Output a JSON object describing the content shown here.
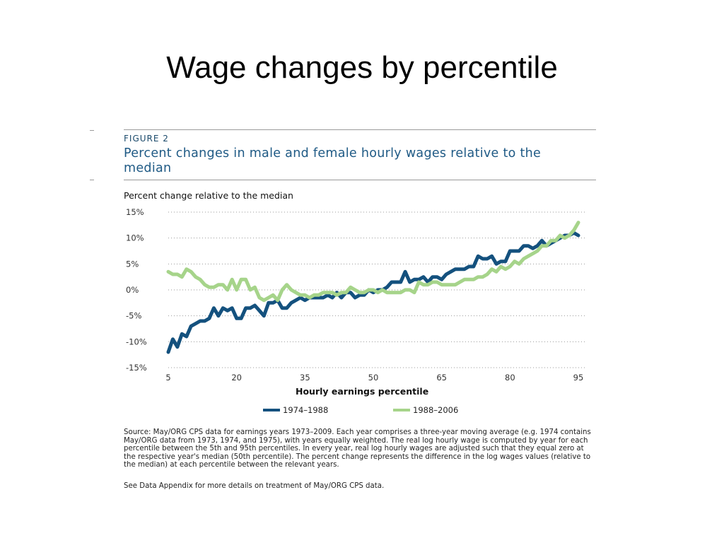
{
  "slide": {
    "title": "Wage changes by percentile"
  },
  "figure": {
    "label": "FIGURE 2",
    "title": "Percent changes in male and female hourly wages relative to the median",
    "source": "Source: May/ORG CPS data for earnings years 1973–2009. Each year comprises a three-year moving average (e.g. 1974 contains May/ORG data from 1973, 1974, and 1975), with years equally weighted. The real log hourly wage is computed by year for each percentile between the 5th and 95th percentiles. In every year, real log hourly wages are adjusted such that they equal zero at the respective year's median (50th percentile). The percent change represents the difference in the log wages values (relative to the median) at each percentile between the relevant years.",
    "appendix_note": "See Data Appendix for more details on treatment of May/ORG CPS data."
  },
  "chart_data": {
    "type": "line",
    "title": "Percent changes in male and female hourly wages relative to the median",
    "ylabel": "Percent change relative to the median",
    "xlabel": "Hourly earnings percentile",
    "xlim": [
      5,
      95
    ],
    "ylim": [
      -15,
      15
    ],
    "x_ticks": [
      "5",
      "20",
      "35",
      "50",
      "65",
      "80",
      "95"
    ],
    "x_tick_values": [
      5,
      20,
      35,
      50,
      65,
      80,
      95
    ],
    "y_ticks": [
      "15%",
      "10%",
      "5%",
      "0%",
      "-5%",
      "-10%",
      "-15%"
    ],
    "y_tick_values": [
      15,
      10,
      5,
      0,
      -5,
      -10,
      -15
    ],
    "grid": "horizontal-dotted",
    "legend_position": "bottom-center",
    "colors": {
      "series_1": "#14517e",
      "series_2": "#a6d48a",
      "grid": "#9a9a9a",
      "axis_text": "#333333"
    },
    "series": [
      {
        "name": "1974–1988",
        "x": [
          5,
          6,
          7,
          8,
          9,
          10,
          11,
          12,
          13,
          14,
          15,
          16,
          17,
          18,
          19,
          20,
          21,
          22,
          23,
          24,
          25,
          26,
          27,
          28,
          29,
          30,
          31,
          32,
          33,
          34,
          35,
          36,
          37,
          38,
          39,
          40,
          41,
          42,
          43,
          44,
          45,
          46,
          47,
          48,
          49,
          50,
          51,
          52,
          53,
          54,
          55,
          56,
          57,
          58,
          59,
          60,
          61,
          62,
          63,
          64,
          65,
          66,
          67,
          68,
          69,
          70,
          71,
          72,
          73,
          74,
          75,
          76,
          77,
          78,
          79,
          80,
          81,
          82,
          83,
          84,
          85,
          86,
          87,
          88,
          89,
          90,
          91,
          92,
          93,
          94,
          95
        ],
        "values": [
          -12.0,
          -9.5,
          -11.0,
          -8.5,
          -9.0,
          -7.0,
          -6.5,
          -6.0,
          -6.0,
          -5.5,
          -3.5,
          -5.0,
          -3.5,
          -4.0,
          -3.5,
          -5.5,
          -5.5,
          -3.5,
          -3.5,
          -3.0,
          -4.0,
          -5.0,
          -2.5,
          -2.5,
          -2.0,
          -3.5,
          -3.5,
          -2.5,
          -2.0,
          -1.5,
          -2.0,
          -1.5,
          -1.5,
          -1.5,
          -1.5,
          -1.0,
          -1.5,
          -0.5,
          -1.5,
          -0.5,
          -0.5,
          -1.5,
          -1.0,
          -1.0,
          0.0,
          -0.5,
          0.0,
          0.0,
          0.5,
          1.5,
          1.5,
          1.5,
          3.5,
          1.5,
          2.0,
          2.0,
          2.5,
          1.5,
          2.5,
          2.5,
          2.0,
          3.0,
          3.5,
          4.0,
          4.0,
          4.0,
          4.5,
          4.5,
          6.5,
          6.0,
          6.0,
          6.5,
          5.0,
          5.5,
          5.5,
          7.5,
          7.5,
          7.5,
          8.5,
          8.5,
          8.0,
          8.5,
          9.5,
          8.5,
          9.0,
          9.5,
          10.0,
          10.5,
          10.5,
          11.0,
          10.5
        ]
      },
      {
        "name": "1988–2006",
        "x": [
          5,
          6,
          7,
          8,
          9,
          10,
          11,
          12,
          13,
          14,
          15,
          16,
          17,
          18,
          19,
          20,
          21,
          22,
          23,
          24,
          25,
          26,
          27,
          28,
          29,
          30,
          31,
          32,
          33,
          34,
          35,
          36,
          37,
          38,
          39,
          40,
          41,
          42,
          43,
          44,
          45,
          46,
          47,
          48,
          49,
          50,
          51,
          52,
          53,
          54,
          55,
          56,
          57,
          58,
          59,
          60,
          61,
          62,
          63,
          64,
          65,
          66,
          67,
          68,
          69,
          70,
          71,
          72,
          73,
          74,
          75,
          76,
          77,
          78,
          79,
          80,
          81,
          82,
          83,
          84,
          85,
          86,
          87,
          88,
          89,
          90,
          91,
          92,
          93,
          94,
          95
        ],
        "values": [
          3.5,
          3.0,
          3.0,
          2.5,
          4.0,
          3.5,
          2.5,
          2.0,
          1.0,
          0.5,
          0.5,
          1.0,
          1.0,
          0.0,
          2.0,
          0.0,
          2.0,
          2.0,
          0.0,
          0.5,
          -1.5,
          -2.0,
          -1.5,
          -1.0,
          -2.0,
          0.0,
          1.0,
          0.0,
          -0.5,
          -1.0,
          -1.0,
          -1.5,
          -1.0,
          -1.0,
          -0.5,
          -0.5,
          -0.5,
          -1.0,
          -0.5,
          -0.5,
          0.5,
          0.0,
          -0.5,
          -0.5,
          0.0,
          0.0,
          -0.5,
          0.0,
          -0.5,
          -0.5,
          -0.5,
          -0.5,
          0.0,
          0.0,
          -0.5,
          1.5,
          1.0,
          1.0,
          1.5,
          1.5,
          1.0,
          1.0,
          1.0,
          1.0,
          1.5,
          2.0,
          2.0,
          2.0,
          2.5,
          2.5,
          3.0,
          4.0,
          3.5,
          4.5,
          4.0,
          4.5,
          5.5,
          5.0,
          6.0,
          6.5,
          7.0,
          7.5,
          8.5,
          8.5,
          9.5,
          9.5,
          10.5,
          10.0,
          10.5,
          11.5,
          13.0
        ]
      }
    ]
  }
}
